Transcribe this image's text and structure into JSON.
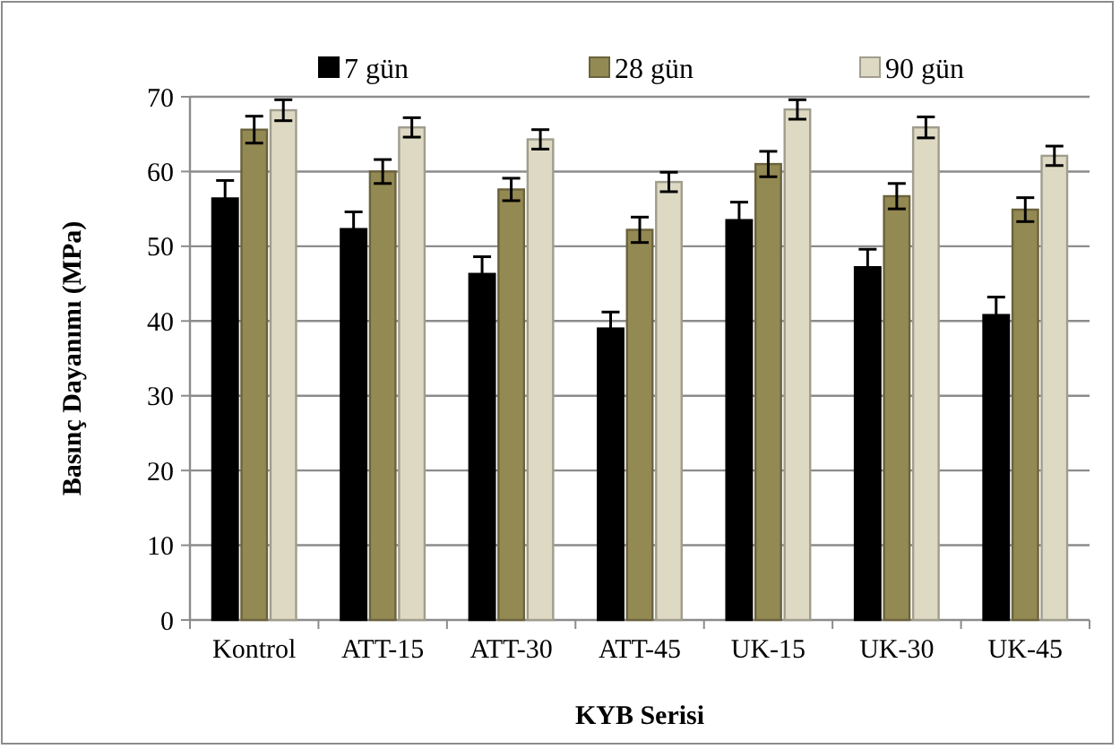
{
  "chart_data": {
    "type": "bar",
    "xlabel": "KYB Serisi",
    "ylabel": "Basınç Dayanımı (MPa)",
    "categories": [
      "Kontrol",
      "ATT-15",
      "ATT-30",
      "ATT-45",
      "UK-15",
      "UK-30",
      "UK-45"
    ],
    "series": [
      {
        "name": "7 gün",
        "color": "#000000",
        "values": [
          56.4,
          52.3,
          46.3,
          39.0,
          53.5,
          47.2,
          40.8
        ],
        "errors": [
          2.4,
          2.3,
          2.3,
          2.2,
          2.4,
          2.4,
          2.4
        ]
      },
      {
        "name": "28 gün",
        "color": "#938953",
        "values": [
          65.6,
          60.0,
          57.6,
          52.2,
          61.0,
          56.7,
          54.9
        ],
        "errors": [
          1.8,
          1.6,
          1.5,
          1.7,
          1.7,
          1.7,
          1.6
        ]
      },
      {
        "name": "90 gün",
        "color": "#ddd9c3",
        "values": [
          68.2,
          65.9,
          64.3,
          58.6,
          68.3,
          65.9,
          62.1
        ],
        "errors": [
          1.4,
          1.3,
          1.3,
          1.3,
          1.3,
          1.4,
          1.3
        ]
      }
    ],
    "ylim": [
      0,
      70
    ],
    "yticks": [
      0,
      10,
      20,
      30,
      40,
      50,
      60,
      70
    ],
    "grid": "y",
    "legend": "top"
  }
}
